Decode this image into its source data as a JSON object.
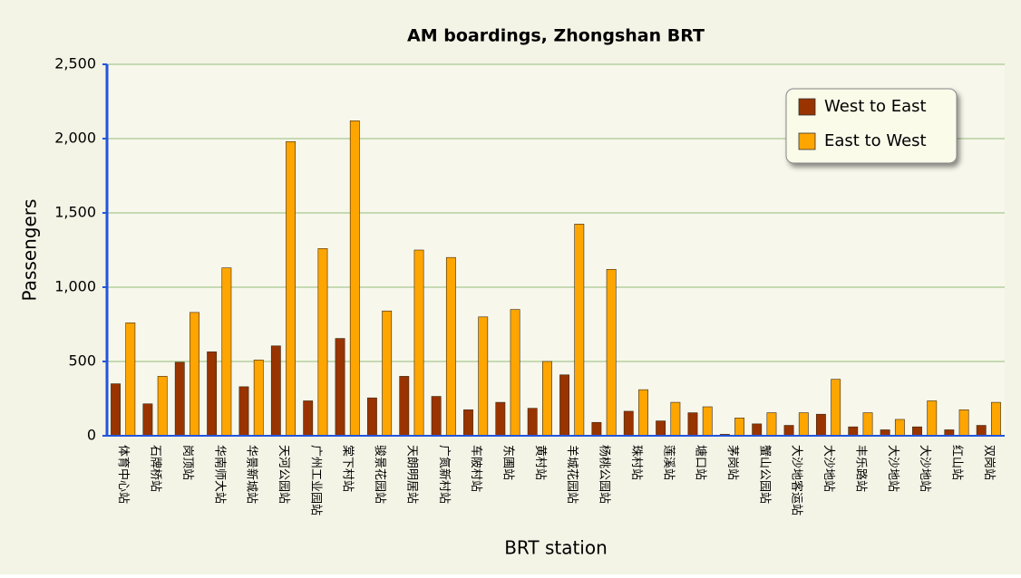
{
  "chart_data": {
    "type": "bar",
    "title": "AM boardings, Zhongshan BRT",
    "x_label": "BRT station",
    "y_label": "Passengers",
    "categories": [
      "体育中心站",
      "石牌桥站",
      "岗顶站",
      "华南师大站",
      "华景新城站",
      "天河公园站",
      "广州工业园站",
      "棠下村站",
      "骏景花园站",
      "天朗明居站",
      "广氮新村站",
      "车陂村站",
      "东圃站",
      "黄村站",
      "羊城花园站",
      "杨桃公园站",
      "珠村站",
      "莲溪站",
      "塘口站",
      "茅岗站",
      "蟹山公园站",
      "大沙地客运站",
      "大沙地站",
      "丰乐路站",
      "大沙地站",
      "大沙地站",
      "红山站",
      "双岗站"
    ],
    "series": [
      {
        "name": "West to East",
        "color": "#993300",
        "values": [
          350,
          215,
          495,
          565,
          330,
          605,
          235,
          655,
          255,
          400,
          265,
          175,
          225,
          185,
          410,
          90,
          165,
          100,
          155,
          10,
          80,
          70,
          145,
          60,
          40,
          60,
          40,
          70
        ]
      },
      {
        "name": "East to West",
        "color": "#ffa500",
        "values": [
          760,
          400,
          830,
          1130,
          510,
          1980,
          1260,
          2120,
          840,
          1250,
          1200,
          800,
          850,
          500,
          1425,
          1120,
          310,
          225,
          195,
          120,
          155,
          155,
          380,
          155,
          110,
          235,
          175,
          225
        ]
      }
    ],
    "ylim": [
      0,
      2500
    ],
    "yticks": [
      0,
      500,
      {
        "value": 1000,
        "label": "1,000"
      },
      {
        "value": 1500,
        "label": "1,500"
      },
      {
        "value": 2000,
        "label": "2,000"
      },
      {
        "value": 2500,
        "label": "2,500"
      }
    ],
    "grid": true,
    "legend": "upper right"
  }
}
